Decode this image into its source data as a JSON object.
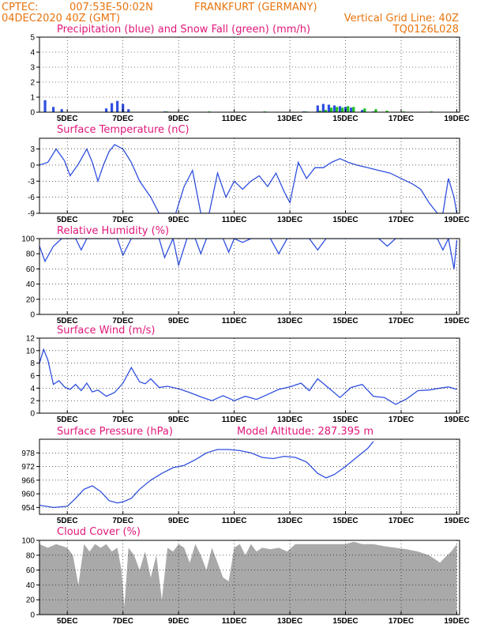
{
  "header": {
    "source": "CPTEC:",
    "coords": "007:53E-50:02N",
    "location": "FRANKFURT (GERMANY)",
    "run": "04DEC2020 40Z (GMT)",
    "grid_note": "Vertical Grid Line: 40Z",
    "code": "TQ0126L028"
  },
  "colors": {
    "header": "#e8740e",
    "title": "#e0177a",
    "line": "#2f4fe0",
    "snow": "#1fbf1f",
    "cloud": "#a9a9a9"
  },
  "x_labels": [
    "5DEC",
    "7DEC",
    "9DEC",
    "11DEC",
    "13DEC",
    "15DEC",
    "17DEC",
    "19DEC"
  ],
  "chart_data": [
    {
      "type": "bar",
      "title": "Precipitation (blue) and Snow Fall (green) (mm/h)",
      "ylim": [
        0,
        5
      ],
      "yticks": [
        "0",
        "1",
        "2",
        "3",
        "4",
        "5"
      ],
      "x": [
        4.2,
        4.5,
        4.8,
        6.4,
        6.6,
        6.8,
        7.0,
        7.2,
        8.5,
        10.0,
        12.0,
        13.5,
        14.0,
        14.2,
        14.4,
        14.6,
        14.8,
        15.0,
        15.2,
        15.6,
        16.0,
        16.4,
        17.0,
        18.0
      ],
      "series": [
        {
          "values": [
            0.8,
            0.35,
            0.2,
            0.25,
            0.6,
            0.75,
            0.55,
            0.2,
            0.05,
            0.02,
            0.02,
            0.05,
            0.45,
            0.55,
            0.5,
            0.45,
            0.4,
            0.35,
            0.3,
            0.15,
            0.05,
            0.02,
            0.02,
            0.02
          ]
        },
        {
          "values": [
            0,
            0,
            0,
            0,
            0,
            0,
            0,
            0,
            0.05,
            0.05,
            0.05,
            0.05,
            0.1,
            0.15,
            0.3,
            0.35,
            0.3,
            0.4,
            0.35,
            0.25,
            0.2,
            0.1,
            0.05,
            0.05
          ]
        }
      ]
    },
    {
      "type": "line",
      "title": "Surface Temperature (nC)",
      "ylim": [
        -9,
        5
      ],
      "yticks": [
        "-9",
        "-6",
        "-3",
        "0",
        "3"
      ],
      "x": [
        4.0,
        4.3,
        4.6,
        4.9,
        5.1,
        5.4,
        5.7,
        5.9,
        6.1,
        6.3,
        6.5,
        6.7,
        7.0,
        7.3,
        7.6,
        8.0,
        8.3,
        8.6,
        8.9,
        9.2,
        9.5,
        9.8,
        10.1,
        10.4,
        10.7,
        11.0,
        11.3,
        11.6,
        11.9,
        12.2,
        12.5,
        12.8,
        13.0,
        13.3,
        13.6,
        13.9,
        14.2,
        14.5,
        14.8,
        15.1,
        15.4,
        15.8,
        16.2,
        16.6,
        17.0,
        17.4,
        17.7,
        18.0,
        18.3,
        18.5,
        18.7,
        18.9,
        19.0
      ],
      "y": [
        0,
        0.5,
        3,
        0.8,
        -2,
        0.2,
        3,
        0.5,
        -3,
        0,
        2.5,
        3.8,
        3,
        0.5,
        -3,
        -6,
        -9,
        -9,
        -9,
        -4,
        -1,
        -9,
        -9,
        -1.5,
        -6,
        -3,
        -4.5,
        -3,
        -2,
        -4,
        -1.5,
        -5,
        -7,
        0.5,
        -2.5,
        -0.5,
        -0.5,
        0.5,
        1.2,
        0.5,
        0,
        -0.5,
        -1,
        -1.5,
        -2.5,
        -3.5,
        -4.5,
        -7,
        -9,
        -9,
        -2.5,
        -6,
        -9
      ]
    },
    {
      "type": "line",
      "title": "Relative Humidity (%)",
      "ylim": [
        0,
        100
      ],
      "yticks": [
        "0",
        "20",
        "40",
        "60",
        "80",
        "100"
      ],
      "x": [
        4.0,
        4.2,
        4.5,
        4.8,
        5.0,
        5.3,
        5.5,
        5.7,
        5.9,
        6.2,
        6.5,
        6.8,
        7.0,
        7.3,
        7.6,
        8.0,
        8.3,
        8.5,
        8.8,
        9.0,
        9.3,
        9.6,
        9.8,
        10.0,
        10.3,
        10.6,
        10.8,
        11.0,
        11.3,
        11.6,
        12.0,
        12.3,
        12.6,
        12.9,
        13.1,
        13.4,
        13.7,
        14.0,
        14.3,
        14.6,
        15.0,
        15.4,
        15.8,
        16.2,
        16.5,
        16.8,
        17.2,
        17.6,
        18.0,
        18.3,
        18.5,
        18.7,
        18.9,
        19.0
      ],
      "y": [
        90,
        70,
        90,
        100,
        100,
        100,
        85,
        100,
        100,
        100,
        100,
        100,
        78,
        100,
        100,
        100,
        100,
        75,
        100,
        65,
        100,
        100,
        80,
        100,
        100,
        100,
        82,
        100,
        95,
        100,
        100,
        100,
        80,
        100,
        100,
        100,
        100,
        85,
        100,
        100,
        100,
        100,
        100,
        100,
        90,
        100,
        100,
        100,
        100,
        100,
        85,
        100,
        60,
        98
      ]
    },
    {
      "type": "line",
      "title": "Surface Wind (m/s)",
      "ylim": [
        0,
        12
      ],
      "yticks": [
        "0",
        "2",
        "4",
        "6",
        "8",
        "10",
        "12"
      ],
      "x": [
        4.0,
        4.15,
        4.3,
        4.5,
        4.7,
        4.9,
        5.1,
        5.3,
        5.5,
        5.7,
        5.9,
        6.1,
        6.4,
        6.7,
        7.0,
        7.3,
        7.6,
        7.8,
        8.0,
        8.3,
        8.6,
        9.0,
        9.4,
        9.8,
        10.2,
        10.6,
        11.0,
        11.4,
        11.8,
        12.2,
        12.6,
        13.0,
        13.4,
        13.7,
        14.0,
        14.4,
        14.8,
        15.2,
        15.6,
        16.0,
        16.4,
        16.8,
        17.2,
        17.6,
        18.0,
        18.4,
        18.7,
        19.0
      ],
      "y": [
        8.0,
        10.2,
        8.5,
        4.6,
        5.2,
        4.2,
        3.8,
        4.6,
        3.6,
        4.8,
        3.4,
        3.7,
        2.7,
        3.3,
        4.8,
        7.3,
        5.0,
        4.7,
        5.5,
        4.1,
        4.3,
        3.9,
        3.3,
        2.6,
        2.0,
        2.8,
        2.0,
        2.7,
        2.2,
        3.0,
        3.8,
        4.2,
        4.8,
        3.6,
        5.5,
        4.0,
        2.5,
        4.1,
        4.6,
        2.7,
        2.5,
        1.4,
        2.3,
        3.6,
        3.7,
        4.0,
        4.2,
        3.8
      ]
    },
    {
      "type": "line",
      "title": "Surface Pressure (hPa)",
      "subtitle": "Model Altitude: 287.395 m",
      "ylim": [
        951,
        984
      ],
      "yticks": [
        "954",
        "960",
        "966",
        "972",
        "978"
      ],
      "x": [
        4.0,
        4.5,
        5.0,
        5.3,
        5.6,
        5.9,
        6.2,
        6.5,
        6.8,
        7.0,
        7.3,
        7.6,
        8.0,
        8.4,
        8.8,
        9.2,
        9.6,
        10.0,
        10.4,
        10.8,
        11.2,
        11.6,
        12.0,
        12.4,
        12.8,
        13.2,
        13.6,
        14.0,
        14.3,
        14.6,
        15.0,
        15.4,
        15.8,
        16.0
      ],
      "y": [
        955,
        954,
        954.5,
        958,
        962,
        963.5,
        961,
        957,
        956,
        956.5,
        958,
        962,
        966,
        969,
        971.5,
        972.5,
        975,
        978,
        979.5,
        979.5,
        979,
        978,
        976,
        975.5,
        976.5,
        976,
        974,
        969,
        967,
        968.5,
        972,
        976,
        980,
        983
      ]
    },
    {
      "type": "area",
      "title": "Cloud Cover (%)",
      "ylim": [
        0,
        100
      ],
      "yticks": [
        "0",
        "20",
        "40",
        "60",
        "80",
        "100"
      ],
      "x": [
        4.0,
        4.3,
        4.6,
        5.0,
        5.2,
        5.4,
        5.6,
        5.8,
        6.0,
        6.2,
        6.4,
        6.6,
        6.8,
        6.95,
        7.05,
        7.2,
        7.4,
        7.6,
        7.8,
        8.0,
        8.2,
        8.4,
        8.6,
        8.8,
        9.0,
        9.2,
        9.4,
        9.6,
        9.8,
        10.0,
        10.2,
        10.4,
        10.6,
        10.8,
        11.0,
        11.2,
        11.4,
        11.6,
        11.8,
        12.0,
        12.3,
        12.6,
        12.9,
        13.2,
        13.5,
        13.8,
        14.1,
        14.4,
        14.7,
        15.0,
        15.3,
        15.6,
        16.0,
        16.4,
        16.8,
        17.2,
        17.6,
        18.0,
        18.2,
        18.4,
        18.6,
        18.8,
        19.0
      ],
      "y": [
        95,
        90,
        95,
        90,
        80,
        40,
        95,
        85,
        95,
        90,
        95,
        85,
        90,
        60,
        10,
        90,
        80,
        60,
        85,
        50,
        80,
        20,
        90,
        85,
        95,
        90,
        70,
        95,
        80,
        60,
        90,
        70,
        50,
        45,
        90,
        95,
        80,
        95,
        85,
        90,
        88,
        90,
        85,
        95,
        95,
        95,
        95,
        95,
        95,
        95,
        98,
        95,
        95,
        92,
        90,
        88,
        85,
        80,
        75,
        70,
        78,
        85,
        95
      ]
    }
  ]
}
